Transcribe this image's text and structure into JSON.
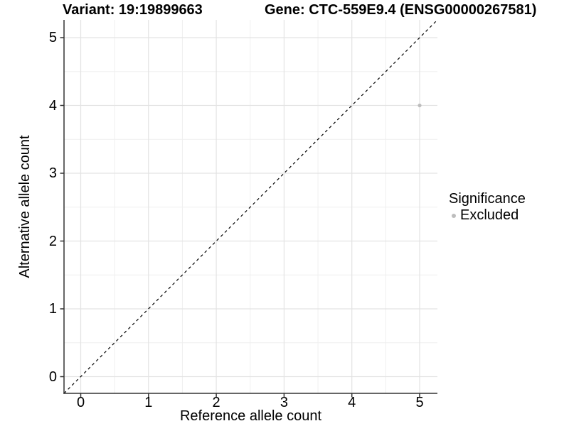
{
  "titles": {
    "variant": "Variant: 19:19899663",
    "gene": "Gene: CTC-559E9.4 (ENSG00000267581)"
  },
  "axes": {
    "x": {
      "label": "Reference allele count",
      "tick_labels": [
        "0",
        "1",
        "2",
        "3",
        "4",
        "5"
      ]
    },
    "y": {
      "label": "Alternative allele count",
      "tick_labels": [
        "0",
        "1",
        "2",
        "3",
        "4",
        "5"
      ]
    }
  },
  "legend": {
    "title": "Significance",
    "items": [
      {
        "label": "Excluded",
        "color": "#bdbdbd"
      }
    ]
  },
  "colors": {
    "background": "#ffffff",
    "axis_line": "#333333",
    "grid_major": "#e3e3e3",
    "grid_minor": "#efefef",
    "reference_line": "#000000",
    "point": "#bdbdbd",
    "text": "#000000"
  },
  "chart_data": {
    "type": "scatter",
    "title": "Variant: 19:19899663  |  Gene: CTC-559E9.4 (ENSG00000267581)",
    "xlabel": "Reference allele count",
    "ylabel": "Alternative allele count",
    "xlim": [
      -0.2625,
      5.2625
    ],
    "ylim": [
      -0.2625,
      5.2625
    ],
    "x_ticks": [
      0,
      1,
      2,
      3,
      4,
      5
    ],
    "y_ticks": [
      0,
      1,
      2,
      3,
      4,
      5
    ],
    "minor_ticks": [
      0.5,
      1.5,
      2.5,
      3.5,
      4.5
    ],
    "grid": "major+minor",
    "legend_title": "Significance",
    "legend_position": "right",
    "series": [
      {
        "name": "Excluded",
        "color": "#bdbdbd",
        "points": [
          {
            "x": 5,
            "y": 4
          }
        ]
      }
    ],
    "reference_line": {
      "equation": "y = x",
      "style": "dashed",
      "color": "#000000"
    }
  }
}
